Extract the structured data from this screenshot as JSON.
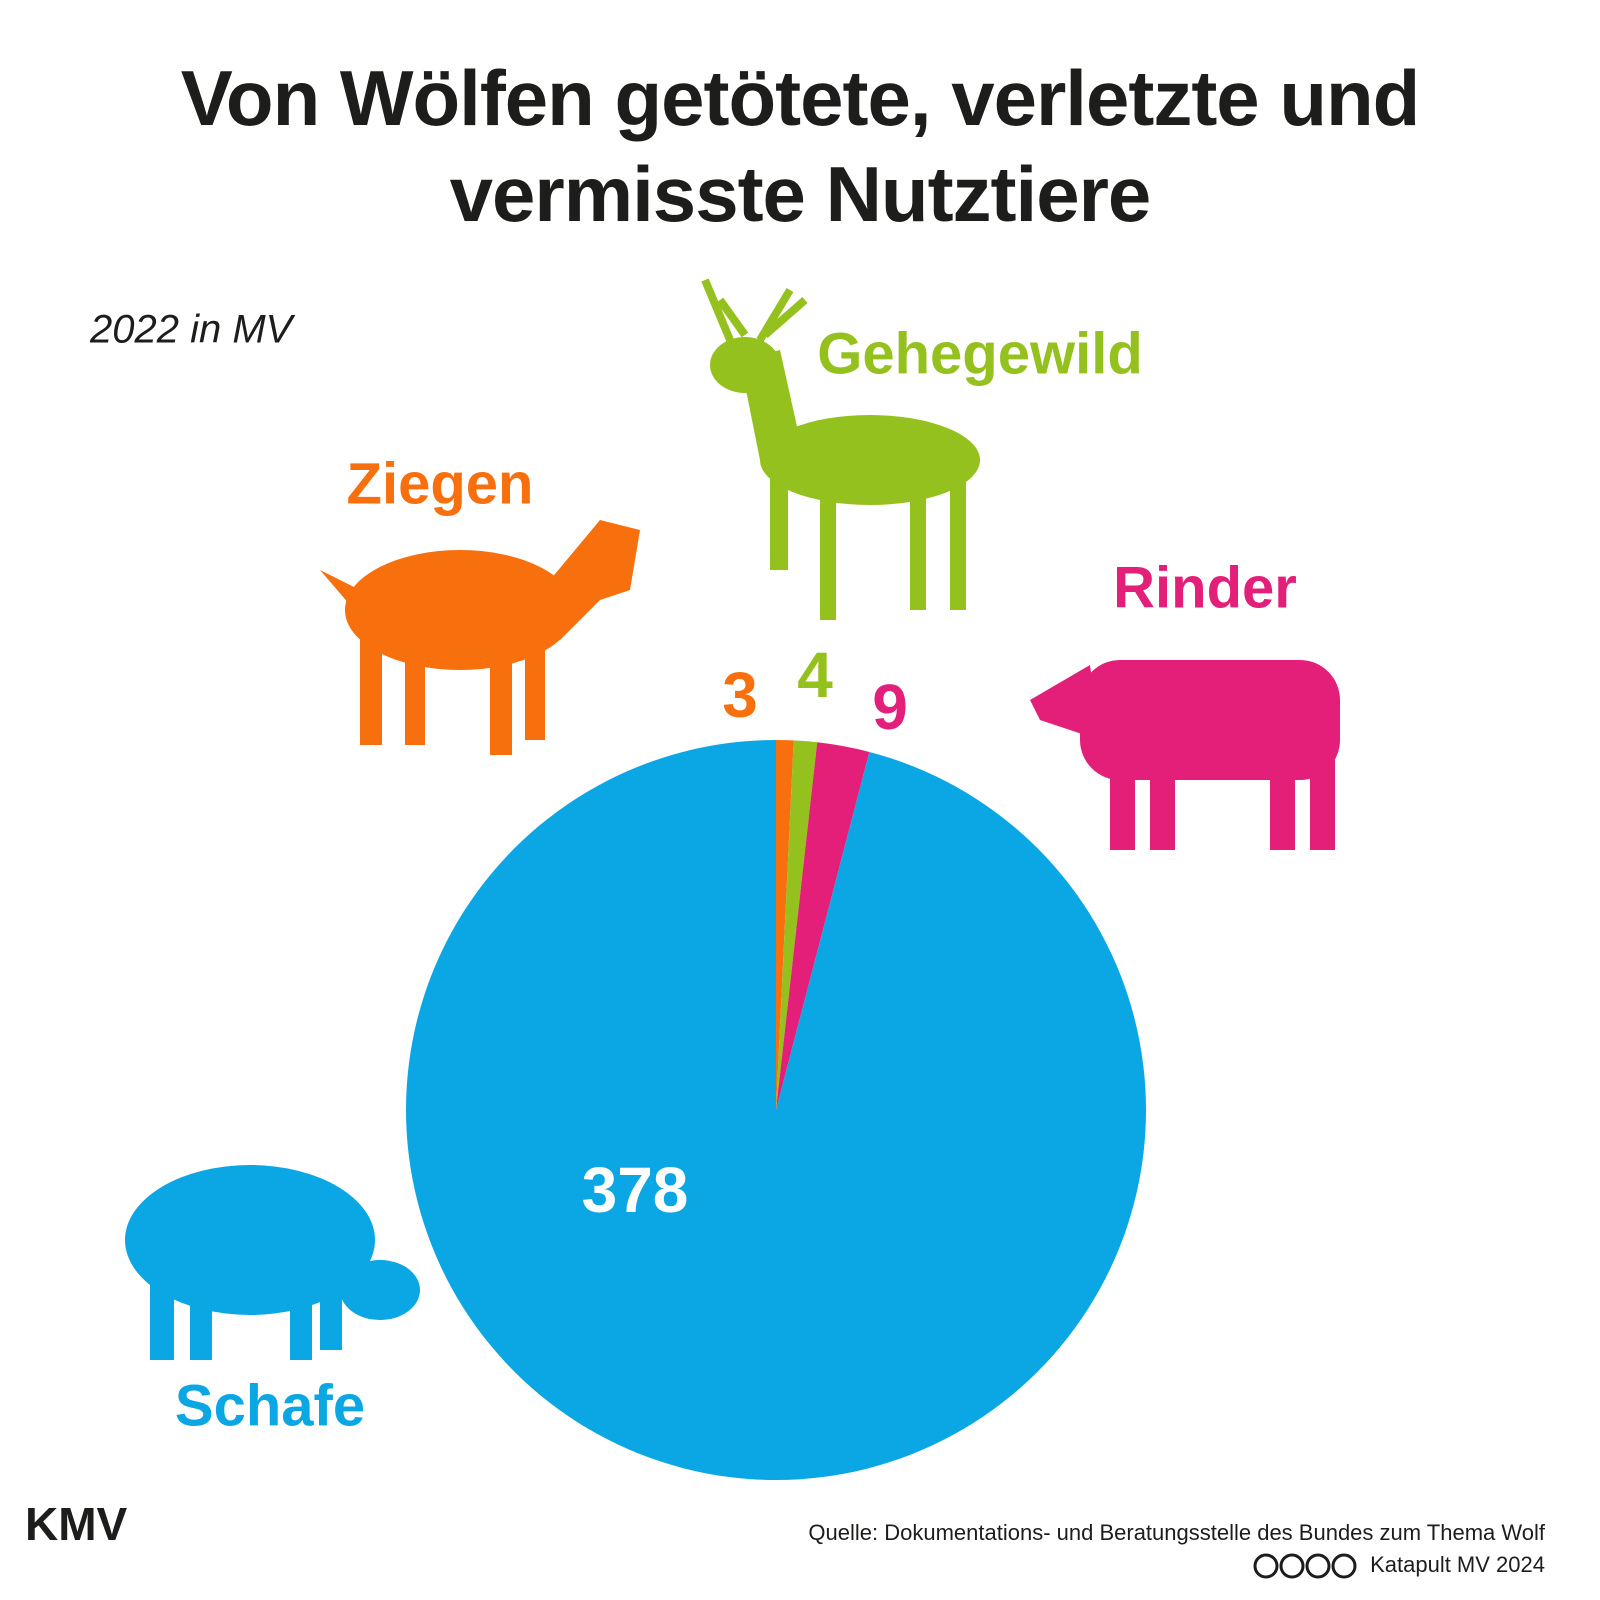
{
  "chart_data": {
    "type": "pie",
    "title": "Von Wölfen getötete, verletzte und vermisste Nutztiere",
    "subtitle": "2022 in MV",
    "categories": [
      "Ziegen",
      "Gehegewild",
      "Rinder",
      "Schafe"
    ],
    "values": [
      3,
      4,
      9,
      378
    ],
    "colors": [
      "#f7700d",
      "#95c11f",
      "#e31f79",
      "#0aa7e4"
    ],
    "source": "Quelle: Dokumentations- und Beratungsstelle des Bundes zum Thema Wolf",
    "credit": "Katapult MV 2024",
    "logo": "KMV"
  }
}
